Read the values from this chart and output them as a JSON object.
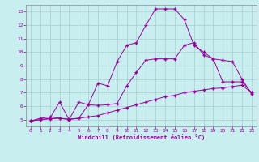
{
  "xlabel": "Windchill (Refroidissement éolien,°C)",
  "bg_color": "#c8eef0",
  "line_color": "#990099",
  "grid_color": "#aacccc",
  "xlim": [
    -0.5,
    23.5
  ],
  "ylim": [
    4.5,
    13.5
  ],
  "yticks": [
    5,
    6,
    7,
    8,
    9,
    10,
    11,
    12,
    13
  ],
  "xticks": [
    0,
    1,
    2,
    3,
    4,
    5,
    6,
    7,
    8,
    9,
    10,
    11,
    12,
    13,
    14,
    15,
    16,
    17,
    18,
    19,
    20,
    21,
    22,
    23
  ],
  "line1_x": [
    0,
    1,
    2,
    3,
    4,
    5,
    6,
    7,
    8,
    9,
    10,
    11,
    12,
    13,
    14,
    15,
    16,
    17,
    18,
    19,
    20,
    21,
    22,
    23
  ],
  "line1_y": [
    4.9,
    5.0,
    5.05,
    5.1,
    5.05,
    5.1,
    5.2,
    5.3,
    5.5,
    5.7,
    5.9,
    6.1,
    6.3,
    6.5,
    6.7,
    6.8,
    7.0,
    7.1,
    7.2,
    7.3,
    7.35,
    7.45,
    7.55,
    7.0
  ],
  "line2_x": [
    0,
    1,
    2,
    3,
    4,
    5,
    6,
    7,
    8,
    9,
    10,
    11,
    12,
    13,
    14,
    15,
    16,
    17,
    18,
    19,
    20,
    21,
    22,
    23
  ],
  "line2_y": [
    4.9,
    5.1,
    5.2,
    5.1,
    5.0,
    6.3,
    6.1,
    6.05,
    6.1,
    6.2,
    7.5,
    8.5,
    9.4,
    9.5,
    9.5,
    9.5,
    10.5,
    10.7,
    9.8,
    9.5,
    7.8,
    7.8,
    7.8,
    7.0
  ],
  "line3_x": [
    0,
    2,
    3,
    4,
    5,
    6,
    7,
    8,
    9,
    10,
    11,
    12,
    13,
    14,
    15,
    16,
    17,
    18,
    19,
    20,
    21,
    22,
    23
  ],
  "line3_y": [
    4.9,
    5.1,
    6.3,
    5.0,
    5.1,
    6.1,
    7.7,
    7.5,
    9.3,
    10.5,
    10.7,
    12.0,
    13.2,
    13.2,
    13.2,
    12.4,
    10.5,
    10.0,
    9.5,
    9.4,
    9.3,
    8.0,
    6.9
  ]
}
